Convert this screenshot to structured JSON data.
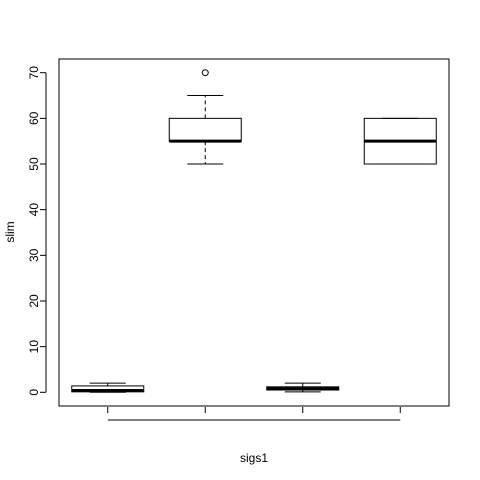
{
  "chart_data": {
    "type": "boxplot",
    "title": "",
    "xlabel": "sigs1",
    "ylabel": "slim",
    "ylim": [
      -3,
      73
    ],
    "yticks": [
      0,
      10,
      20,
      30,
      40,
      50,
      60,
      70
    ],
    "ytick_labels": [
      "0",
      "10",
      "20",
      "30",
      "40",
      "50",
      "60",
      "70"
    ],
    "grid": false,
    "boxes": [
      {
        "whisker_low": 0,
        "q1": 0.1,
        "median": 0.4,
        "q3": 1.4,
        "whisker_high": 2.0,
        "outliers": []
      },
      {
        "whisker_low": 50,
        "q1": 55,
        "median": 55,
        "q3": 60,
        "whisker_high": 65,
        "outliers": [
          70
        ]
      },
      {
        "whisker_low": 0.1,
        "q1": 0.5,
        "median": 0.8,
        "q3": 1.2,
        "whisker_high": 2.0,
        "outliers": []
      },
      {
        "whisker_low": 50,
        "q1": 50,
        "median": 55,
        "q3": 60,
        "whisker_high": 60,
        "outliers": []
      }
    ]
  }
}
